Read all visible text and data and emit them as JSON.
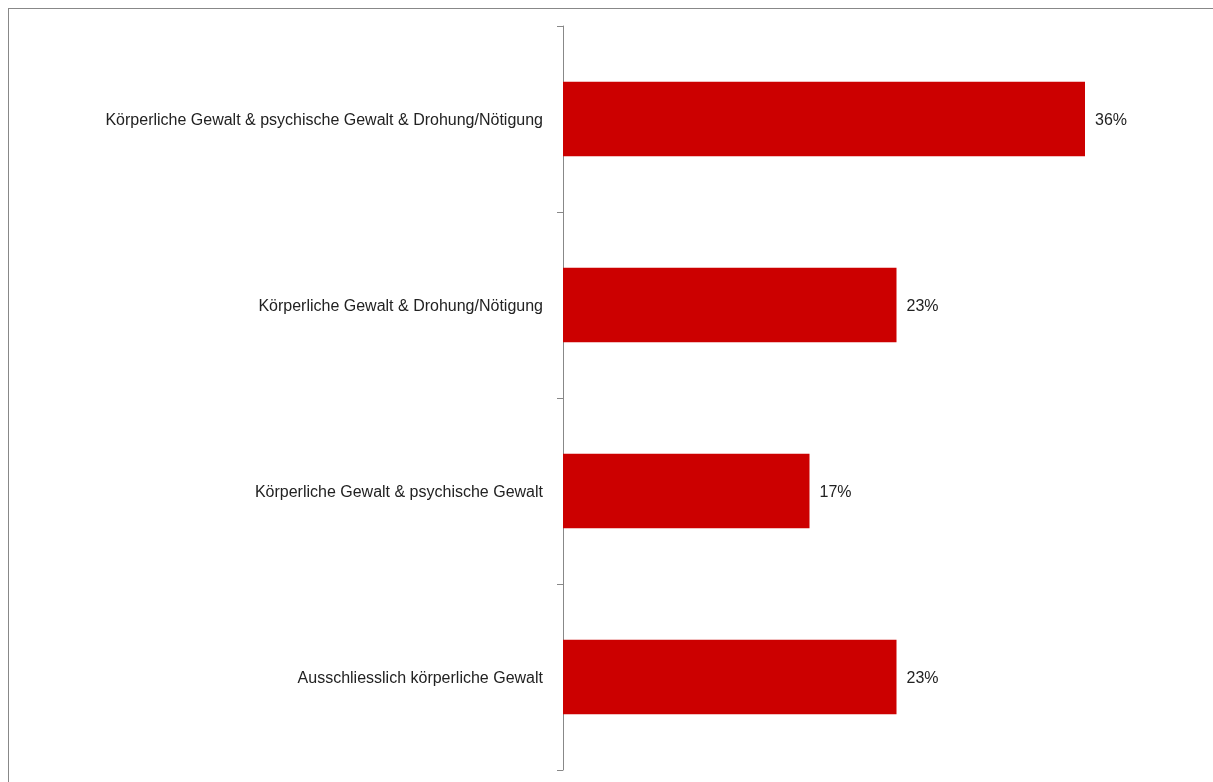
{
  "chart_data": {
    "type": "bar",
    "orientation": "horizontal",
    "categories": [
      "Körperliche Gewalt & psychische Gewalt & Drohung/Nötigung",
      "Körperliche Gewalt & Drohung/Nötigung",
      "Körperliche Gewalt & psychische Gewalt",
      "Ausschliesslich körperliche Gewalt"
    ],
    "values": [
      36,
      23,
      17,
      23
    ],
    "value_labels": [
      "36%",
      "23%",
      "17%",
      "23%"
    ],
    "color": "#cc0000"
  }
}
